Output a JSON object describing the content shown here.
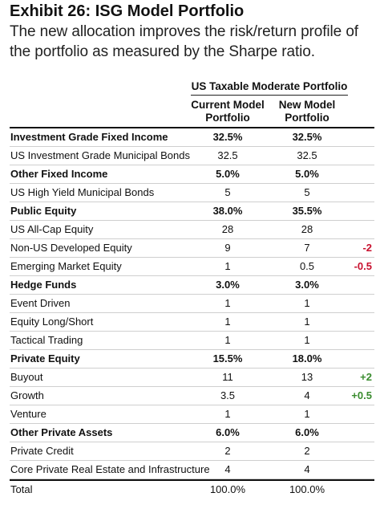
{
  "exhibit": {
    "title": "Exhibit 26: ISG Model Portfolio",
    "subtitle": "The new allocation improves the risk/return profile of the portfolio as measured by the Sharpe ratio."
  },
  "table": {
    "group_header": "US Taxable Moderate Portfolio",
    "col_current_line1": "Current Model",
    "col_current_line2": "Portfolio",
    "col_new_line1": "New Model",
    "col_new_line2": "Portfolio",
    "rows": [
      {
        "label": "Investment Grade Fixed Income",
        "current": "32.5%",
        "new": "32.5%",
        "change": "",
        "change_type": "",
        "bold": true
      },
      {
        "label": "US Investment Grade Municipal Bonds",
        "current": "32.5",
        "new": "32.5",
        "change": "",
        "change_type": "",
        "bold": false
      },
      {
        "label": "Other Fixed Income",
        "current": "5.0%",
        "new": "5.0%",
        "change": "",
        "change_type": "",
        "bold": true
      },
      {
        "label": "US High Yield Municipal Bonds",
        "current": "5",
        "new": "5",
        "change": "",
        "change_type": "",
        "bold": false
      },
      {
        "label": "Public Equity",
        "current": "38.0%",
        "new": "35.5%",
        "change": "",
        "change_type": "",
        "bold": true
      },
      {
        "label": "US All-Cap Equity",
        "current": "28",
        "new": "28",
        "change": "",
        "change_type": "",
        "bold": false
      },
      {
        "label": "Non-US Developed Equity",
        "current": "9",
        "new": "7",
        "change": "-2",
        "change_type": "neg",
        "bold": false
      },
      {
        "label": "Emerging Market Equity",
        "current": "1",
        "new": "0.5",
        "change": "-0.5",
        "change_type": "neg",
        "bold": false
      },
      {
        "label": "Hedge Funds",
        "current": "3.0%",
        "new": "3.0%",
        "change": "",
        "change_type": "",
        "bold": true
      },
      {
        "label": "Event Driven",
        "current": "1",
        "new": "1",
        "change": "",
        "change_type": "",
        "bold": false
      },
      {
        "label": "Equity Long/Short",
        "current": "1",
        "new": "1",
        "change": "",
        "change_type": "",
        "bold": false
      },
      {
        "label": "Tactical Trading",
        "current": "1",
        "new": "1",
        "change": "",
        "change_type": "",
        "bold": false
      },
      {
        "label": "Private Equity",
        "current": "15.5%",
        "new": "18.0%",
        "change": "",
        "change_type": "",
        "bold": true
      },
      {
        "label": "Buyout",
        "current": "11",
        "new": "13",
        "change": "+2",
        "change_type": "pos",
        "bold": false
      },
      {
        "label": "Growth",
        "current": "3.5",
        "new": "4",
        "change": "+0.5",
        "change_type": "pos",
        "bold": false
      },
      {
        "label": "Venture",
        "current": "1",
        "new": "1",
        "change": "",
        "change_type": "",
        "bold": false
      },
      {
        "label": "Other Private Assets",
        "current": "6.0%",
        "new": "6.0%",
        "change": "",
        "change_type": "",
        "bold": true
      },
      {
        "label": "Private Credit",
        "current": "2",
        "new": "2",
        "change": "",
        "change_type": "",
        "bold": false
      },
      {
        "label": "Core Private Real Estate and Infrastructure",
        "current": "4",
        "new": "4",
        "change": "",
        "change_type": "",
        "bold": false
      }
    ],
    "total": {
      "label": "Total",
      "current": "100.0%",
      "new": "100.0%"
    }
  }
}
